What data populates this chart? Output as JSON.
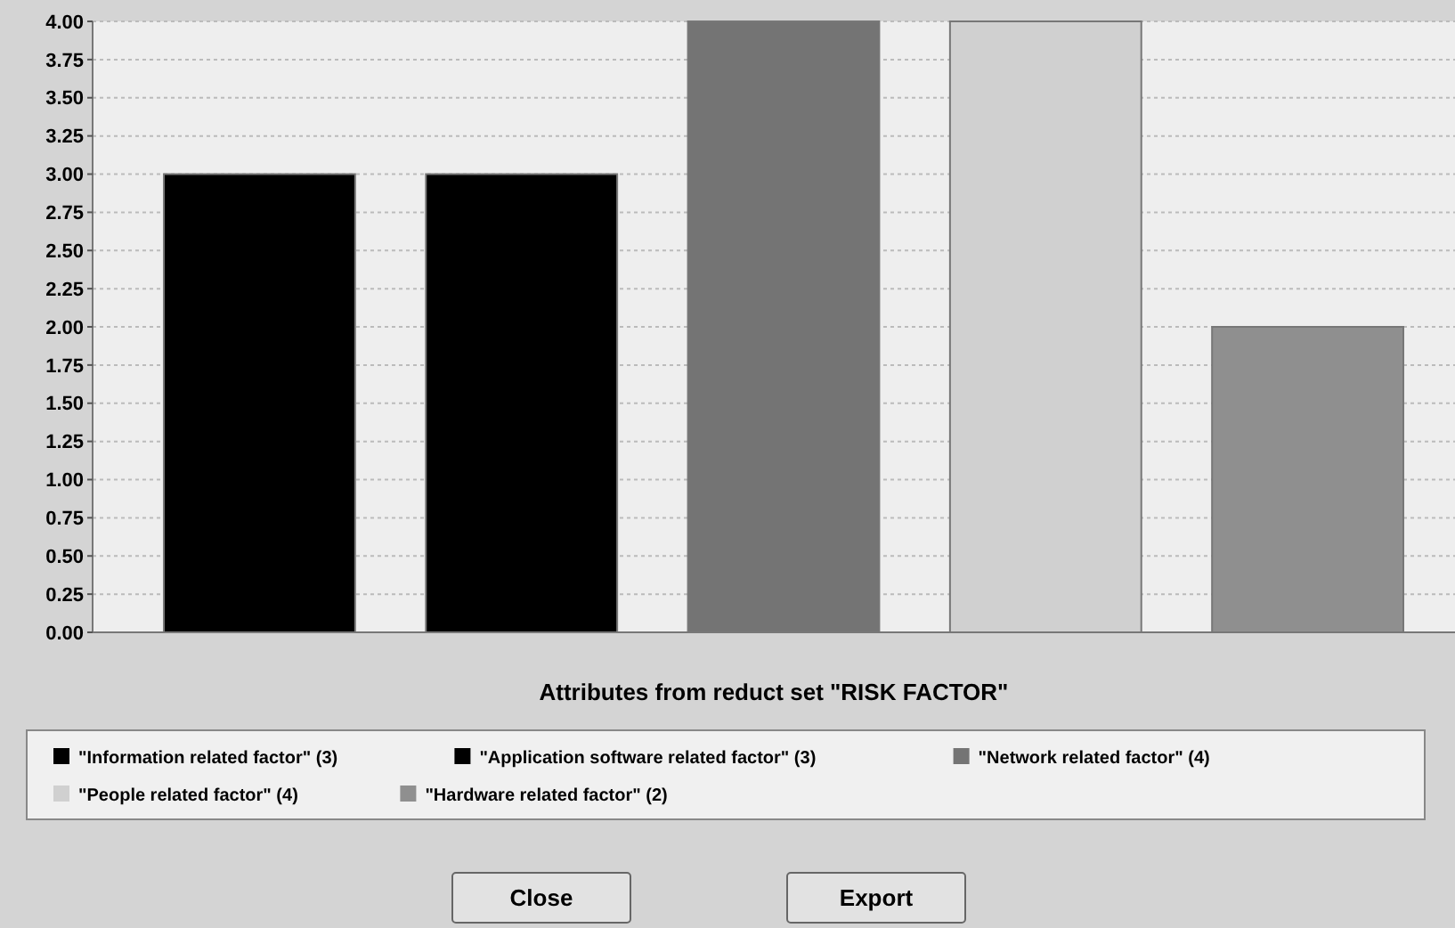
{
  "chart_data": {
    "type": "bar",
    "xlabel": "Attributes from reduct set \"RISK FACTOR\"",
    "categories": [
      null
    ],
    "series": [
      {
        "name": "\"Information related factor\" (3)",
        "color": "#000000",
        "values": [
          3
        ]
      },
      {
        "name": "\"Application software related factor\" (3)",
        "color": "#000000",
        "values": [
          3
        ]
      },
      {
        "name": "\"Network related factor\" (4)",
        "color": "#747474",
        "values": [
          4
        ]
      },
      {
        "name": "\"People related factor\" (4)",
        "color": "#d0d0d0",
        "values": [
          4
        ]
      },
      {
        "name": "\"Hardware related factor\" (2)",
        "color": "#8f8f8f",
        "values": [
          2
        ]
      }
    ],
    "ylim": [
      0,
      4
    ],
    "yticks": [
      {
        "value": 0,
        "label": "0.00"
      },
      {
        "value": 0.25,
        "label": "0.25"
      },
      {
        "value": 0.5,
        "label": "0.50"
      },
      {
        "value": 0.75,
        "label": "0.75"
      },
      {
        "value": 1,
        "label": "1.00"
      },
      {
        "value": 1.25,
        "label": "1.25"
      },
      {
        "value": 1.5,
        "label": "1.50"
      },
      {
        "value": 1.75,
        "label": "1.75"
      },
      {
        "value": 2,
        "label": "2.00"
      },
      {
        "value": 2.25,
        "label": "2.25"
      },
      {
        "value": 2.5,
        "label": "2.50"
      },
      {
        "value": 2.75,
        "label": "2.75"
      },
      {
        "value": 3,
        "label": "3.00"
      },
      {
        "value": 3.25,
        "label": "3.25"
      },
      {
        "value": 3.5,
        "label": "3.50"
      },
      {
        "value": 3.75,
        "label": "3.75"
      },
      {
        "value": 4,
        "label": "4.00"
      }
    ],
    "grid": "y",
    "legend": "bottom",
    "annotations": [
      "Close",
      "Export"
    ]
  }
}
